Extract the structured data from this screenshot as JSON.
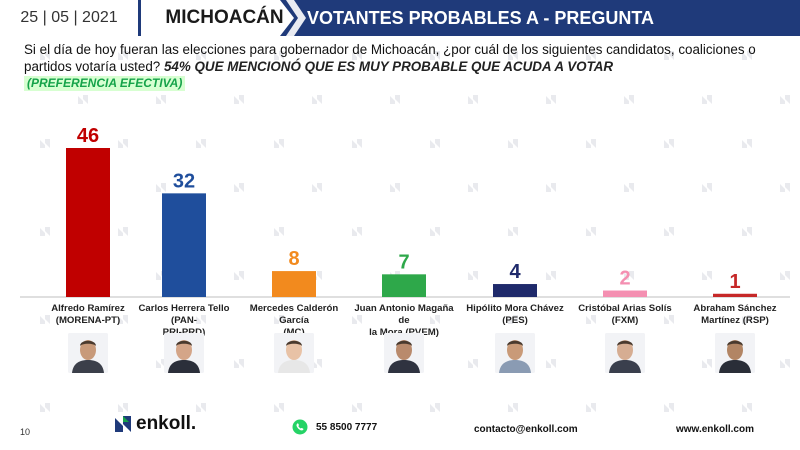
{
  "header": {
    "date": "25 | 05 | 2021",
    "state": "MICHOACÁN",
    "title": "VOTANTES PROBABLES A - PREGUNTA"
  },
  "question": {
    "text": "Si el día de hoy fueran las elecciones para gobernador de Michoacán, ¿por cuál de los siguientes candidatos, coaliciones o partidos votaría usted?",
    "highlight": "54% QUE MENCIONÓ QUE ES MUY PROBABLE QUE ACUDA A VOTAR",
    "preference": "(PREFERENCIA EFECTIVA)"
  },
  "chart_data": {
    "type": "bar",
    "categories": [
      "Alfredo Ramírez (MORENA-PT)",
      "Carlos Herrera Tello (PAN-PRI-PRD)",
      "Mercedes Calderón García (MC)",
      "Juan Antonio Magaña de la Mora (PVEM)",
      "Hipólito Mora Chávez (PES)",
      "Cristóbal Arias Solís (FXM)",
      "Abraham Sánchez Martínez (RSP)"
    ],
    "label_lines": [
      [
        "Alfredo Ramírez",
        "(MORENA-PT)"
      ],
      [
        "Carlos Herrera Tello (PAN-",
        "PRI-PRD)"
      ],
      [
        "Mercedes Calderón García",
        "(MC)"
      ],
      [
        "Juan Antonio Magaña de",
        "la Mora (PVEM)"
      ],
      [
        "Hipólito Mora Chávez",
        "(PES)"
      ],
      [
        "Cristóbal Arias Solís (FXM)"
      ],
      [
        "Abraham Sánchez",
        "Martínez (RSP)"
      ]
    ],
    "values": [
      46,
      32,
      8,
      7,
      4,
      2,
      1
    ],
    "colors": [
      "#c00000",
      "#1f4e9c",
      "#f28a1e",
      "#2ea84a",
      "#1f2a6b",
      "#f48fb1",
      "#c62828"
    ],
    "ylim": [
      0,
      46
    ]
  },
  "footer": {
    "page": "10",
    "brand": "enkoll.",
    "phone": "55 8500 7777",
    "email": "contacto@enkoll.com",
    "website": "www.enkoll.com"
  },
  "colors": {
    "header_blue": "#1f3a7a",
    "preference_green": "#16a34a"
  }
}
